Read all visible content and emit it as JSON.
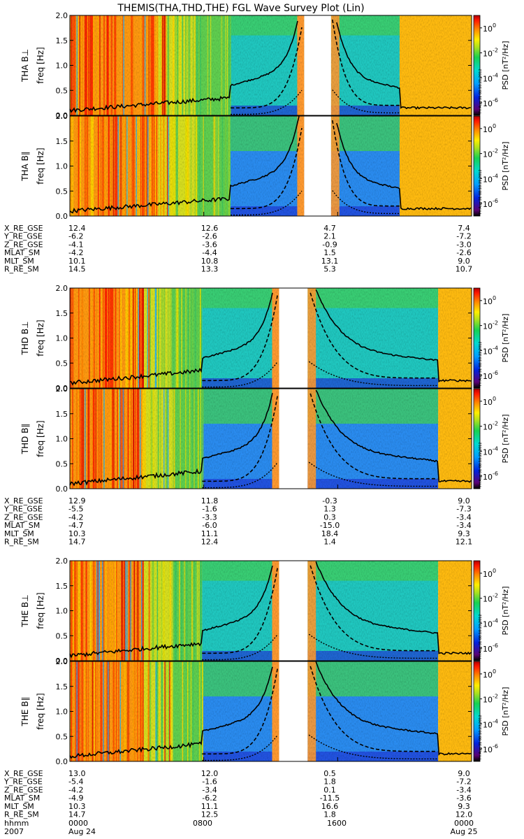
{
  "chart_data": {
    "type": "heatmap",
    "title": "THEMIS(THA,THD,THE) FGL Wave Survey Plot (Lin)",
    "y_axis": {
      "label": "freq [Hz]",
      "range": [
        0,
        2.0
      ],
      "ticks": [
        "0.0",
        "0.5",
        "1.0",
        "1.5",
        "2.0"
      ]
    },
    "colorbar": {
      "label": "PSD [nT²/Hz]",
      "scale": "log",
      "range_exponent": [
        -7,
        1
      ],
      "ticks": [
        {
          "mantissa": "10",
          "exp": "0"
        },
        {
          "mantissa": "10",
          "exp": "-2"
        },
        {
          "mantissa": "10",
          "exp": "-4"
        },
        {
          "mantissa": "10",
          "exp": "-6"
        }
      ]
    },
    "x_axis": {
      "range_hours": [
        0,
        24
      ],
      "row_labels": [
        "hhmm",
        "2007"
      ],
      "ticks": [
        {
          "hour": 0,
          "hhmm": "0000",
          "date": "Aug 24"
        },
        {
          "hour": 8,
          "hhmm": "0800",
          "date": ""
        },
        {
          "hour": 16,
          "hhmm": "1600",
          "date": ""
        },
        {
          "hour": 24,
          "hhmm": "0000",
          "date": "Aug 25"
        }
      ]
    },
    "probes": [
      {
        "id": "THA",
        "panels": [
          "THA B⊥",
          "THA B∥"
        ],
        "stamps": [
          "Fri Aug 31 08:10:21 2012",
          "Fri Aug 31 08:10:21 2012"
        ],
        "gap_hours": [
          14.0,
          15.6
        ],
        "inner_hours": [
          9.6,
          19.7
        ],
        "ephemeris": [
          {
            "name": "X_RE_GSE",
            "values": [
              "12.4",
              "12.6",
              "4.7",
              "7.4"
            ]
          },
          {
            "name": "Y_RE_GSE",
            "values": [
              "-6.2",
              "-2.6",
              "2.1",
              "-7.2"
            ]
          },
          {
            "name": "Z_RE_GSE",
            "values": [
              "-4.1",
              "-3.6",
              "-0.9",
              "-3.0"
            ]
          },
          {
            "name": "MLAT_SM",
            "values": [
              "-4.2",
              "-4.4",
              "1.5",
              "-2.6"
            ]
          },
          {
            "name": "MLT_SM",
            "values": [
              "10.1",
              "10.8",
              "13.1",
              "9.0"
            ]
          },
          {
            "name": "R_RE_SM",
            "values": [
              "14.5",
              "13.3",
              "5.3",
              "10.7"
            ]
          }
        ]
      },
      {
        "id": "THD",
        "panels": [
          "THD B⊥",
          "THD B∥"
        ],
        "stamps": [
          "Fri Aug 31 08:10:22 2012",
          "Fri Aug 31 08:10:22 2012"
        ],
        "gap_hours": [
          12.5,
          14.2
        ],
        "inner_hours": [
          7.9,
          22.0
        ],
        "ephemeris": [
          {
            "name": "X_RE_GSE",
            "values": [
              "12.9",
              "11.8",
              "-0.3",
              "9.0"
            ]
          },
          {
            "name": "Y_RE_GSE",
            "values": [
              "-5.5",
              "-1.6",
              "1.3",
              "-7.3"
            ]
          },
          {
            "name": "Z_RE_GSE",
            "values": [
              "-4.2",
              "-3.3",
              "0.3",
              "-3.4"
            ]
          },
          {
            "name": "MLAT_SM",
            "values": [
              "-4.7",
              "-6.0",
              "-15.0",
              "-3.4"
            ]
          },
          {
            "name": "MLT_SM",
            "values": [
              "10.3",
              "11.1",
              "18.4",
              "9.3"
            ]
          },
          {
            "name": "R_RE_SM",
            "values": [
              "14.7",
              "12.4",
              "1.4",
              "12.1"
            ]
          }
        ]
      },
      {
        "id": "THE",
        "panels": [
          "THE B⊥",
          "THE B∥"
        ],
        "stamps": [
          "Fri Aug 31 08:10:23 2012",
          "Fri Aug 31 08:10:23 2012"
        ],
        "gap_hours": [
          12.5,
          14.2
        ],
        "inner_hours": [
          7.9,
          22.0
        ],
        "ephemeris": [
          {
            "name": "X_RE_GSE",
            "values": [
              "13.0",
              "12.0",
              "0.5",
              "9.0"
            ]
          },
          {
            "name": "Y_RE_GSE",
            "values": [
              "-5.4",
              "-1.6",
              "1.8",
              "-7.2"
            ]
          },
          {
            "name": "Z_RE_GSE",
            "values": [
              "-4.2",
              "-3.4",
              "0.1",
              "-3.4"
            ]
          },
          {
            "name": "MLAT_SM",
            "values": [
              "-4.9",
              "-6.2",
              "-11.5",
              "-3.6"
            ]
          },
          {
            "name": "MLT_SM",
            "values": [
              "10.3",
              "11.1",
              "16.6",
              "9.3"
            ]
          },
          {
            "name": "R_RE_SM",
            "values": [
              "14.7",
              "12.5",
              "1.8",
              "12.0"
            ]
          }
        ]
      }
    ]
  }
}
